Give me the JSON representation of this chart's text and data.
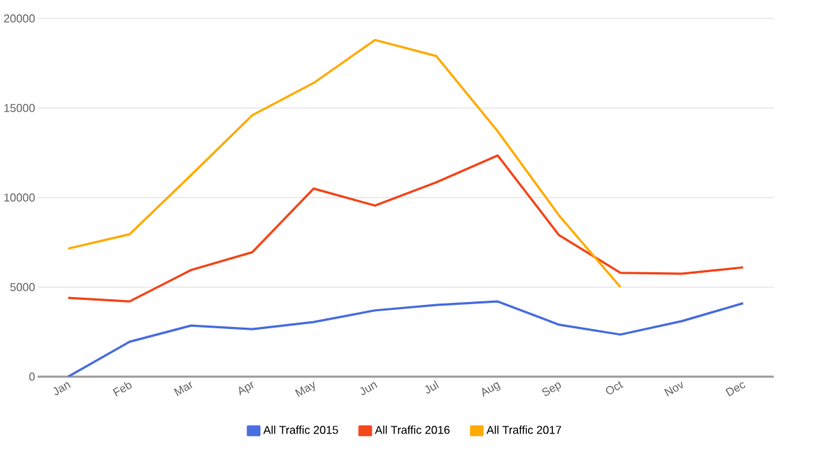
{
  "chart_data": {
    "type": "line",
    "categories": [
      "Jan",
      "Feb",
      "Mar",
      "Apr",
      "May",
      "Jun",
      "Jul",
      "Aug",
      "Sep",
      "Oct",
      "Nov",
      "Dec"
    ],
    "series": [
      {
        "name": "All Traffic 2015",
        "color": "#4a6ee0",
        "values": [
          0,
          1950,
          2850,
          2650,
          3050,
          3700,
          4000,
          4200,
          2900,
          2350,
          3100,
          4100
        ]
      },
      {
        "name": "All Traffic 2016",
        "color": "#f4471c",
        "values": [
          4400,
          4200,
          5950,
          6950,
          10500,
          9550,
          10850,
          12350,
          7900,
          5800,
          5750,
          6100
        ]
      },
      {
        "name": "All Traffic 2017",
        "color": "#ffab00",
        "values": [
          7150,
          7950,
          11250,
          14600,
          16400,
          18800,
          17900,
          13700,
          9000,
          5000,
          null,
          null
        ]
      }
    ],
    "ylim": [
      0,
      20000
    ],
    "yticks": [
      0,
      5000,
      10000,
      15000,
      20000
    ],
    "grid": "y",
    "legend": "bottom",
    "marker": "none",
    "line_style": "solid"
  }
}
